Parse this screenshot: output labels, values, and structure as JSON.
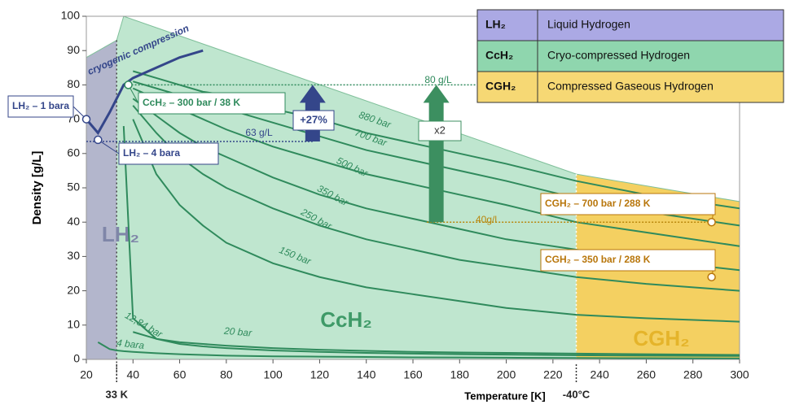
{
  "chart_data": {
    "type": "line",
    "xlabel": "Temperature [K]",
    "ylabel": "Density [g/L]",
    "xlim": [
      20,
      300
    ],
    "ylim": [
      0,
      100
    ],
    "xticks": [
      20,
      40,
      60,
      80,
      100,
      120,
      140,
      160,
      180,
      200,
      220,
      240,
      260,
      280,
      300
    ],
    "yticks": [
      0,
      10,
      20,
      30,
      40,
      50,
      60,
      70,
      80,
      90,
      100
    ],
    "x": [
      20,
      25,
      30,
      33,
      36,
      40,
      50,
      60,
      70,
      80,
      100,
      120,
      140,
      160,
      180,
      200,
      230,
      260,
      300
    ],
    "envelope": {
      "x": [
        20,
        33,
        36,
        230,
        300
      ],
      "values": [
        88,
        93,
        100,
        54,
        46
      ]
    },
    "regions": [
      {
        "name": "LH₂",
        "color": "#b3b6cc",
        "text_color": "#7f86a8",
        "xlim": [
          20,
          33
        ]
      },
      {
        "name": "CcH₂",
        "color": "#bfe6cf",
        "text_color": "#3f9a68",
        "xlim": [
          33,
          230
        ]
      },
      {
        "name": "CGH₂",
        "color": "#f4d061",
        "text_color": "#e5b42a",
        "xlim": [
          230,
          300
        ]
      }
    ],
    "markers": [
      {
        "x": 33,
        "label": "33 K"
      },
      {
        "x": 230,
        "label": "-40°C"
      }
    ],
    "series": [
      {
        "name": "880 bar",
        "color": "#2f8a5c",
        "values": [
          null,
          null,
          null,
          null,
          null,
          84,
          82,
          80,
          78,
          77,
          73,
          70,
          66,
          63,
          60,
          57,
          52,
          48,
          44
        ]
      },
      {
        "name": "700 bar",
        "color": "#2f8a5c",
        "values": [
          null,
          null,
          null,
          null,
          null,
          81,
          79,
          77,
          75,
          73,
          69,
          65,
          61,
          58,
          55,
          52,
          47,
          43,
          39
        ]
      },
      {
        "name": "500 bar",
        "color": "#2f8a5c",
        "values": [
          null,
          null,
          null,
          null,
          null,
          79,
          76,
          73,
          70,
          67,
          62,
          58,
          54,
          51,
          48,
          45,
          40,
          37,
          33
        ]
      },
      {
        "name": "350 bar",
        "color": "#2f8a5c",
        "values": [
          null,
          null,
          null,
          null,
          null,
          76,
          71,
          66,
          62,
          59,
          53,
          48,
          44,
          41,
          38,
          35,
          32,
          29,
          26
        ]
      },
      {
        "name": "250 bar",
        "color": "#2f8a5c",
        "values": [
          null,
          null,
          null,
          null,
          null,
          74,
          66,
          59,
          54,
          50,
          44,
          39,
          35,
          32,
          29,
          27,
          24,
          22,
          20
        ]
      },
      {
        "name": "150 bar",
        "color": "#2f8a5c",
        "values": [
          null,
          null,
          null,
          null,
          null,
          70,
          54,
          45,
          39,
          34,
          28,
          24,
          21,
          19,
          17,
          15,
          13,
          12,
          11
        ]
      },
      {
        "name": "20 bar",
        "color": "#2f8a5c",
        "values": [
          null,
          null,
          null,
          null,
          null,
          8,
          6,
          5,
          4.5,
          4,
          3.3,
          2.8,
          2.5,
          2.2,
          2,
          1.9,
          1.7,
          1.5,
          1.3
        ]
      },
      {
        "name": "12,84 bar",
        "color": "#2f8a5c",
        "values": [
          null,
          null,
          null,
          null,
          68,
          12,
          6,
          4.5,
          3.8,
          3.3,
          2.6,
          2.2,
          1.9,
          1.7,
          1.5,
          1.4,
          1.2,
          1.1,
          1
        ]
      },
      {
        "name": "4 bara",
        "color": "#2f8a5c",
        "values": [
          null,
          5,
          3,
          2.6,
          2.4,
          2.2,
          1.8,
          1.5,
          1.3,
          1.1,
          0.9,
          0.8,
          0.7,
          0.6,
          0.55,
          0.5,
          0.4,
          0.35,
          0.3
        ]
      },
      {
        "name": "cryogenic compression",
        "color": "#34468a",
        "values": [
          70,
          66,
          72,
          76,
          80,
          82,
          85,
          88,
          90,
          null,
          null,
          null,
          null,
          null,
          null,
          null,
          null,
          null,
          null
        ]
      }
    ],
    "reference_lines": [
      {
        "label": "80 g/L",
        "y": 80,
        "xlim": [
          38,
          230
        ],
        "color": "#2f8a5c"
      },
      {
        "label": "63 g/L",
        "y": 63.5,
        "xlim": [
          20,
          117
        ],
        "color": "#34468a"
      },
      {
        "label": "40g/l",
        "y": 40,
        "xlim": [
          166,
          288
        ],
        "color": "#b8860b"
      }
    ],
    "arrows": [
      {
        "label": "+27%",
        "x": 117,
        "from": 63.5,
        "to": 80,
        "color": "#34468a"
      },
      {
        "label": "x2",
        "x": 170,
        "from": 40,
        "to": 80,
        "color": "#3c8f60"
      }
    ],
    "annotations": [
      {
        "text": "LH₂ – 1 bara",
        "x": 20,
        "y": 70,
        "color": "#34468a"
      },
      {
        "text": "LH₂ – 4 bara",
        "x": 25,
        "y": 64,
        "color": "#34468a"
      },
      {
        "text": "CcH₂ – 300 bar / 38 K",
        "x": 38,
        "y": 80,
        "color": "#2f8a5c"
      },
      {
        "text": "CGH₂ – 700 bar / 288 K",
        "x": 288,
        "y": 40,
        "color": "#b8760b"
      },
      {
        "text": "CGH₂ – 350 bar / 288 K",
        "x": 288,
        "y": 24,
        "color": "#b8760b"
      }
    ],
    "legend": [
      {
        "symbol": "LH₂",
        "label": "Liquid Hydrogen",
        "color": "#aba9e4"
      },
      {
        "symbol": "CcH₂",
        "label": "Cryo-compressed Hydrogen",
        "color": "#8fd6ae"
      },
      {
        "symbol": "CGH₂",
        "label": "Compressed Gaseous Hydrogen",
        "color": "#f6d874"
      }
    ]
  }
}
